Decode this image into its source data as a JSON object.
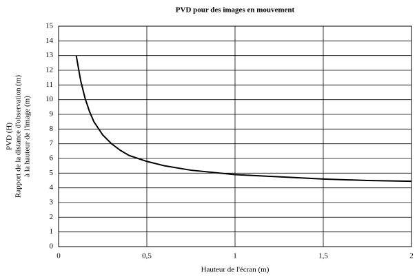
{
  "chart_data": {
    "type": "line",
    "title": "PVD pour des images en mouvement",
    "xlabel": "Hauteur de l'écran (m)",
    "ylabel": [
      "PVD (H)",
      "Rapport de la distance d'observation (m)",
      "à la hauteur de l'image (m)"
    ],
    "x": [
      0.1,
      0.125,
      0.15,
      0.175,
      0.2,
      0.25,
      0.3,
      0.35,
      0.4,
      0.5,
      0.6,
      0.75,
      1,
      1.25,
      1.5,
      1.75,
      2
    ],
    "series": [
      {
        "name": "PVD",
        "color": "#000000",
        "values": [
          13,
          11.3,
          10.1,
          9.2,
          8.5,
          7.6,
          7.0,
          6.55,
          6.2,
          5.8,
          5.5,
          5.2,
          4.9,
          4.75,
          4.6,
          4.5,
          4.45
        ]
      }
    ],
    "xlim": [
      0,
      2
    ],
    "xticks": [
      0,
      {
        "value": 0.5,
        "label": "0,5"
      },
      1,
      {
        "value": 1.5,
        "label": "1,5"
      },
      2
    ],
    "ylim": [
      0,
      15
    ],
    "yticks": [
      0,
      1,
      2,
      3,
      4,
      5,
      6,
      7,
      8,
      9,
      10,
      11,
      12,
      13,
      14,
      15
    ],
    "grid": true
  }
}
